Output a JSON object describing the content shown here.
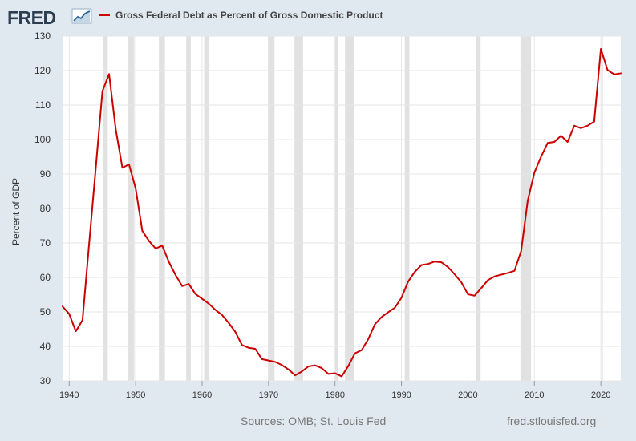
{
  "brand": {
    "logo_text": "FRED",
    "logo_icon": "trend-chart-icon"
  },
  "chart_data": {
    "type": "line",
    "title": "Gross Federal Debt as Percent of Gross Domestic Product",
    "ylabel": "Percent of GDP",
    "xlabel": "",
    "xlim": [
      1939,
      2023
    ],
    "ylim": [
      30,
      130
    ],
    "x_ticks": [
      1940,
      1950,
      1960,
      1970,
      1980,
      1990,
      2000,
      2010,
      2020
    ],
    "y_ticks": [
      30,
      40,
      50,
      60,
      70,
      80,
      90,
      100,
      110,
      120,
      130
    ],
    "grid": true,
    "legend": "top-left",
    "series": [
      {
        "name": "Gross Federal Debt as Percent of Gross Domestic Product",
        "color": "#cc0000",
        "x": [
          1939,
          1940,
          1941,
          1942,
          1943,
          1944,
          1945,
          1946,
          1947,
          1948,
          1949,
          1950,
          1951,
          1952,
          1953,
          1954,
          1955,
          1956,
          1957,
          1958,
          1959,
          1960,
          1961,
          1962,
          1963,
          1964,
          1965,
          1966,
          1967,
          1968,
          1969,
          1970,
          1971,
          1972,
          1973,
          1974,
          1975,
          1976,
          1977,
          1978,
          1979,
          1980,
          1981,
          1982,
          1983,
          1984,
          1985,
          1986,
          1987,
          1988,
          1989,
          1990,
          1991,
          1992,
          1993,
          1994,
          1995,
          1996,
          1997,
          1998,
          1999,
          2000,
          2001,
          2002,
          2003,
          2004,
          2005,
          2006,
          2007,
          2008,
          2009,
          2010,
          2011,
          2012,
          2013,
          2014,
          2015,
          2016,
          2017,
          2018,
          2019,
          2020,
          2021,
          2022,
          2023
        ],
        "values": [
          51.6,
          49.4,
          44.4,
          47.6,
          69.8,
          91.8,
          114.0,
          119.0,
          103.0,
          91.8,
          92.8,
          85.8,
          73.5,
          70.6,
          68.4,
          69.2,
          64.5,
          60.7,
          57.5,
          58.1,
          55.2,
          53.8,
          52.4,
          50.6,
          49.1,
          46.8,
          44.2,
          40.4,
          39.6,
          39.3,
          36.3,
          35.9,
          35.5,
          34.6,
          33.3,
          31.6,
          32.7,
          34.2,
          34.5,
          33.7,
          32.0,
          32.2,
          31.3,
          34.3,
          38.0,
          38.9,
          42.1,
          46.4,
          48.5,
          49.9,
          51.2,
          54.1,
          58.8,
          61.6,
          63.6,
          63.9,
          64.6,
          64.4,
          63.0,
          60.9,
          58.6,
          55.1,
          54.7,
          56.9,
          59.2,
          60.3,
          60.8,
          61.3,
          61.9,
          67.6,
          82.3,
          90.4,
          95.0,
          99.0,
          99.3,
          101.1,
          99.3,
          104.0,
          103.3,
          104.0,
          105.2,
          126.3,
          120.2,
          118.9,
          119.2
        ]
      }
    ],
    "recessions": [
      [
        1945.1,
        1945.8
      ],
      [
        1948.9,
        1949.8
      ],
      [
        1953.5,
        1954.4
      ],
      [
        1957.6,
        1958.3
      ],
      [
        1960.3,
        1961.1
      ],
      [
        1969.9,
        1970.9
      ],
      [
        1973.9,
        1975.2
      ],
      [
        1980.0,
        1980.5
      ],
      [
        1981.5,
        1982.9
      ],
      [
        1990.5,
        1991.2
      ],
      [
        2001.2,
        2001.9
      ],
      [
        2007.9,
        2009.5
      ],
      [
        2020.1,
        2020.3
      ]
    ]
  },
  "footer": {
    "source": "Sources: OMB; St. Louis Fed",
    "url": "fred.stlouisfed.org"
  }
}
